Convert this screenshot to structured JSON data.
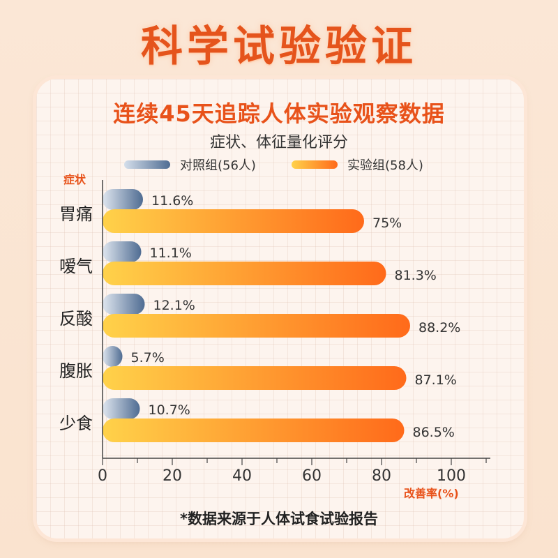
{
  "page": {
    "title": "科学试验验证",
    "headline": "连续45天追踪人体实验观察数据",
    "footnote": "*数据来源于人体试食试验报告"
  },
  "colors": {
    "accent": "#e8521a",
    "control_bar_start": "#dfe6ef",
    "control_bar_end": "#4f6c92",
    "experiment_bar_start": "#ffd24a",
    "experiment_bar_end": "#ff6a1a"
  },
  "chart_data": {
    "type": "bar",
    "orientation": "horizontal",
    "title": "症状、体征量化评分",
    "ylabel": "症状",
    "xlabel": "改善率(%)",
    "categories": [
      "胃痛",
      "嗳气",
      "反酸",
      "腹胀",
      "少食"
    ],
    "series": [
      {
        "name": "对照组(56人)",
        "values": [
          11.6,
          11.1,
          12.1,
          5.7,
          10.7
        ],
        "labels": [
          "11.6%",
          "11.1%",
          "12.1%",
          "5.7%",
          "10.7%"
        ]
      },
      {
        "name": "实验组(58人)",
        "values": [
          75,
          81.3,
          88.2,
          87.1,
          86.5
        ],
        "labels": [
          "75%",
          "81.3%",
          "88.2%",
          "87.1%",
          "86.5%"
        ]
      }
    ],
    "xlim": [
      0,
      110
    ],
    "xticks": [
      0,
      20,
      40,
      60,
      80,
      100
    ],
    "xtick_labels": [
      "0",
      "20",
      "40",
      "60",
      "80",
      "100"
    ],
    "legend_position": "top",
    "grid": true
  }
}
